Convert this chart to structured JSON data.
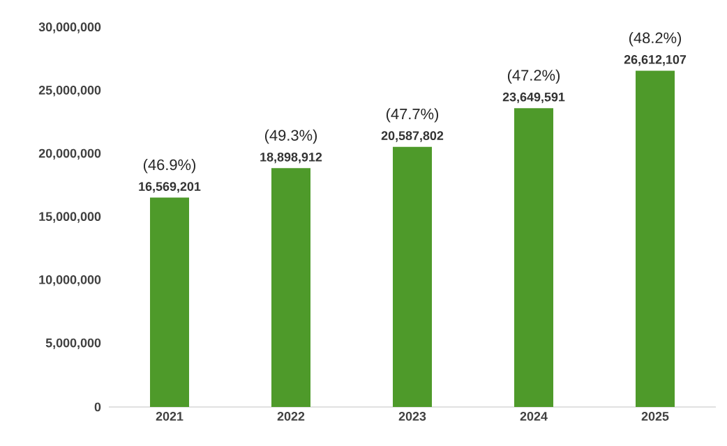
{
  "chart_data": {
    "type": "bar",
    "categories": [
      "2021",
      "2022",
      "2023",
      "2024",
      "2025"
    ],
    "values": [
      16569201,
      18898912,
      20587802,
      23649591,
      26612107
    ],
    "value_labels": [
      "16,569,201",
      "18,898,912",
      "20,587,802",
      "23,649,591",
      "26,612,107"
    ],
    "color": "#4e9a2a",
    "ylim": [
      0,
      30000000
    ],
    "yticks": [
      0,
      {
        "value": 5000000,
        "label": "5,000,000"
      },
      {
        "value": 10000000,
        "label": "10,000,000"
      },
      {
        "value": 15000000,
        "label": "15,000,000"
      },
      {
        "value": 20000000,
        "label": "20,000,000"
      },
      {
        "value": 25000000,
        "label": "25,000,000"
      },
      {
        "value": 30000000,
        "label": "30,000,000"
      }
    ],
    "annotations": [
      {
        "text": "(46.9%)",
        "x": "2021",
        "y": 16569201
      },
      {
        "text": "(49.3%)",
        "x": "2022",
        "y": 18898912
      },
      {
        "text": "(47.7%)",
        "x": "2023",
        "y": 20587802
      },
      {
        "text": "(47.2%)",
        "x": "2024",
        "y": 23649591
      },
      {
        "text": "(48.2%)",
        "x": "2025",
        "y": 26612107
      }
    ],
    "tick_labels": true
  }
}
